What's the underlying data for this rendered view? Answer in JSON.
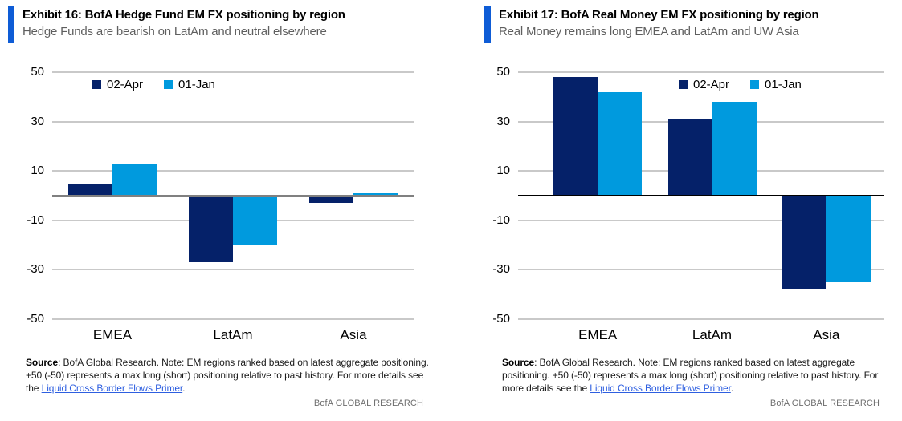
{
  "colors": {
    "accent_blue": "#0E5CD6",
    "apr_navy": "#052169",
    "jan_light_blue": "#009ADE",
    "gridline_gray": "#C9C9C9",
    "link_blue": "#2E5FE0"
  },
  "panels": [
    {
      "title": "Exhibit 16: BofA Hedge Fund EM FX positioning by region",
      "subtitle": "Hedge Funds are bearish on LatAm and neutral elsewhere",
      "footnote": {
        "source_label": "Source",
        "text_before_link": ": BofA Global Research. Note: EM regions ranked based on latest aggregate positioning. +50 (-50) represents a max long (short) positioning relative to past history. For more details see the ",
        "link_text": "Liquid Cross Border Flows Primer",
        "text_after_link": "."
      },
      "brand": "BofA GLOBAL RESEARCH"
    },
    {
      "title": "Exhibit 17: BofA Real Money EM FX positioning by region",
      "subtitle": "Real Money remains long EMEA and LatAm and UW Asia",
      "footnote": {
        "source_label": "Source",
        "text_before_link": ": BofA Global Research. Note: EM regions ranked based on latest aggregate positioning. +50 (-50) represents a max long (short) positioning relative to past history. For more details see the ",
        "link_text": "Liquid Cross Border Flows Primer",
        "text_after_link": "."
      },
      "brand": "BofA GLOBAL RESEARCH"
    }
  ],
  "chart_data": [
    {
      "type": "bar",
      "title": "Exhibit 16: BofA Hedge Fund EM FX positioning by region",
      "subtitle": "Hedge Funds are bearish on LatAm and neutral elsewhere",
      "categories": [
        "EMEA",
        "LatAm",
        "Asia"
      ],
      "series": [
        {
          "name": "02-Apr",
          "color": "#052169",
          "values": [
            5,
            -27,
            -3
          ]
        },
        {
          "name": "01-Jan",
          "color": "#009ADE",
          "values": [
            13,
            -20,
            1
          ]
        }
      ],
      "ylim": [
        -50,
        50
      ],
      "yticks": [
        50,
        30,
        10,
        -10,
        -30,
        -50
      ],
      "grid": true,
      "legend_position": "top-left",
      "zero_line_color": "#808080"
    },
    {
      "type": "bar",
      "title": "Exhibit 17: BofA Real Money EM FX positioning by region",
      "subtitle": "Real Money remains long EMEA and LatAm and UW Asia",
      "categories": [
        "EMEA",
        "LatAm",
        "Asia"
      ],
      "series": [
        {
          "name": "02-Apr",
          "color": "#052169",
          "values": [
            48,
            31,
            -38
          ]
        },
        {
          "name": "01-Jan",
          "color": "#009ADE",
          "values": [
            42,
            38,
            -35
          ]
        }
      ],
      "ylim": [
        -50,
        50
      ],
      "yticks": [
        50,
        30,
        10,
        -10,
        -30,
        -50
      ],
      "grid": true,
      "legend_position": "top-center",
      "zero_line_color": "#000000"
    }
  ]
}
